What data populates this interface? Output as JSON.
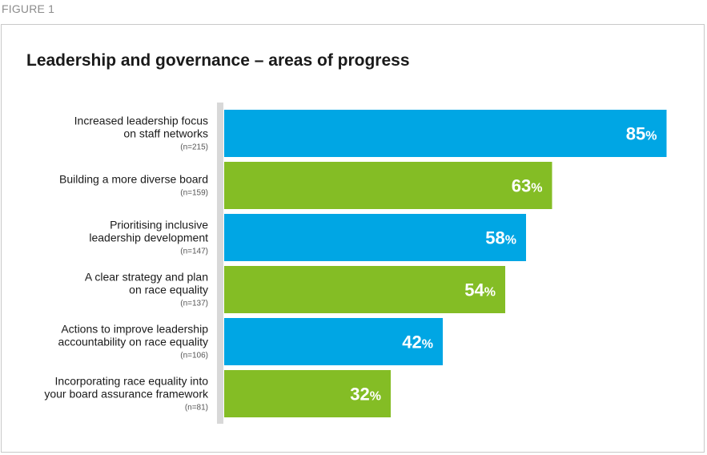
{
  "figure_label": "FIGURE 1",
  "colors": {
    "blue": "#00a6e4",
    "green": "#84bd25",
    "axis": "#d8d8d8"
  },
  "chart_data": {
    "type": "bar",
    "orientation": "horizontal",
    "title": "Leadership and governance – areas of progress",
    "unit": "%",
    "xlim": [
      0,
      100
    ],
    "grid": false,
    "categories": [
      {
        "lines": [
          "Increased leadership focus",
          "on staff networks"
        ],
        "n": "(n=215)"
      },
      {
        "lines": [
          "Building a more diverse board"
        ],
        "n": "(n=159)"
      },
      {
        "lines": [
          "Prioritising inclusive",
          "leadership development"
        ],
        "n": "(n=147)"
      },
      {
        "lines": [
          "A clear strategy and plan",
          "on race equality"
        ],
        "n": "(n=137)"
      },
      {
        "lines": [
          "Actions to improve leadership",
          "accountability on race equality"
        ],
        "n": "(n=106)"
      },
      {
        "lines": [
          "Incorporating race equality into",
          "your board assurance framework"
        ],
        "n": "(n=81)"
      }
    ],
    "values": [
      85,
      63,
      58,
      54,
      42,
      32
    ],
    "bar_colors": [
      "blue",
      "green",
      "blue",
      "green",
      "blue",
      "green"
    ]
  }
}
